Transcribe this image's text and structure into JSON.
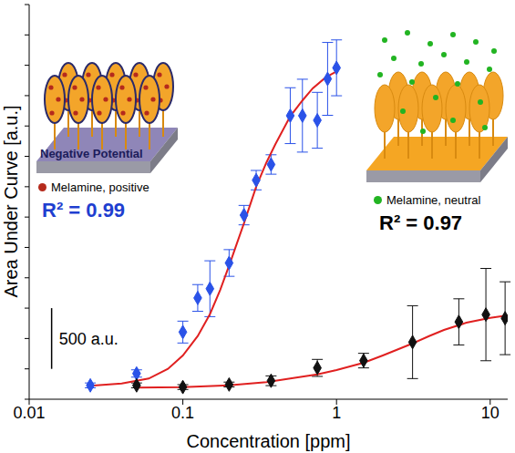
{
  "chart_data": {
    "type": "scatter",
    "x_label": "Concentration [ppm]",
    "y_label": "Area Under Curve [a.u.]",
    "log": "x",
    "grid": false,
    "tick_labels": "x",
    "xlim": [
      0.01,
      13
    ],
    "xticks": [
      0.01,
      0.1,
      1,
      10
    ],
    "ylim": [
      0,
      3250
    ],
    "yticks": [
      0,
      250,
      500,
      750,
      1000,
      1250,
      1500,
      1750,
      2000,
      2250,
      2500,
      2750,
      3000,
      3250
    ],
    "series": [
      {
        "type": "line",
        "color": "#e02020",
        "line_style": "solid",
        "x": [
          0.025,
          0.04,
          0.06,
          0.08,
          0.1,
          0.125,
          0.15,
          0.175,
          0.2,
          0.25,
          0.3,
          0.35,
          0.4,
          0.5,
          0.6,
          0.7,
          0.85,
          1.0
        ],
        "values": [
          110,
          130,
          170,
          250,
          360,
          520,
          700,
          900,
          1100,
          1450,
          1750,
          1950,
          2100,
          2330,
          2460,
          2560,
          2650,
          2700
        ]
      },
      {
        "type": "line",
        "color": "#e02020",
        "line_style": "solid",
        "x": [
          0.05,
          0.1,
          0.2,
          0.35,
          0.5,
          0.75,
          1,
          1.5,
          2,
          3,
          4,
          5,
          7,
          10,
          13
        ],
        "values": [
          95,
          100,
          115,
          140,
          170,
          205,
          240,
          300,
          360,
          450,
          520,
          570,
          630,
          670,
          690
        ]
      },
      {
        "type": "scatter",
        "color": "#2a52e8",
        "marker": "diamond",
        "x": [
          0.025,
          0.05,
          0.1,
          0.125,
          0.15,
          0.2,
          0.25,
          0.3,
          0.375,
          0.5,
          0.6,
          0.75,
          0.875,
          1.0
        ],
        "values": [
          114,
          212,
          553,
          834,
          910,
          1122,
          1516,
          1804,
          1933,
          2335,
          2335,
          2297,
          2638,
          2729
        ],
        "error": [
          20,
          30,
          90,
          110,
          230,
          110,
          80,
          80,
          80,
          230,
          300,
          230,
          300,
          230
        ]
      },
      {
        "type": "scatter",
        "color": "#111111",
        "marker": "diamond",
        "x": [
          0.05,
          0.1,
          0.2,
          0.375,
          0.75,
          1.5,
          3.125,
          6.25,
          9.375,
          12.5
        ],
        "values": [
          114,
          100,
          121,
          152,
          258,
          318,
          470,
          637,
          697,
          667
        ],
        "error": [
          20,
          20,
          20,
          40,
          70,
          60,
          300,
          190,
          380,
          300
        ]
      }
    ],
    "annotations": [
      {
        "text": "Negative Potential",
        "color": "#1c1c5a"
      },
      {
        "text": "Melamine, positive",
        "color": "#b52a1c"
      },
      {
        "text": "R² = 0.99",
        "color": "#1f3fd0"
      },
      {
        "text": "Melamine, neutral",
        "color": "#22b422"
      },
      {
        "text": "R² = 0.97",
        "color": "#000000"
      }
    ],
    "scale_bar": {
      "label": "500 a.u.",
      "value": 500
    }
  }
}
